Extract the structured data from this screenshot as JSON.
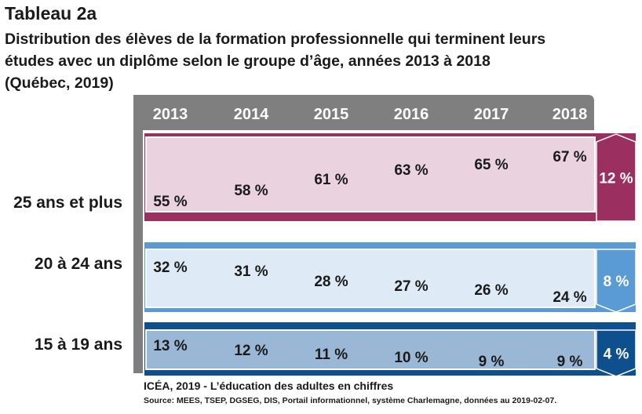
{
  "header": {
    "title": "Tableau 2a",
    "subtitle_lines": [
      "Distribution des élèves de la formation professionnelle qui terminent leurs",
      "études avec un diplôme selon le groupe d’âge, années 2013 à 2018",
      "(Québec, 2019)"
    ]
  },
  "chart_data": {
    "type": "table",
    "title": "Tableau 2a",
    "categories": [
      "2013",
      "2014",
      "2015",
      "2016",
      "2017",
      "2018"
    ],
    "series": [
      {
        "name": "25 ans et plus",
        "values": [
          55,
          58,
          61,
          63,
          65,
          67
        ],
        "labels": [
          "55 %",
          "58 %",
          "61 %",
          "63 %",
          "65 %",
          "67 %"
        ],
        "change": "12 %",
        "direction": "up",
        "color": "#9b2f60",
        "bg": "#ead3df"
      },
      {
        "name": "20 à 24 ans",
        "values": [
          32,
          31,
          28,
          27,
          26,
          24
        ],
        "labels": [
          "32 %",
          "31 %",
          "28 %",
          "27 %",
          "26 %",
          "24 %"
        ],
        "change": "8 %",
        "direction": "down",
        "color": "#5b9bd5",
        "bg": "#deeaf6"
      },
      {
        "name": "15 à 19 ans",
        "values": [
          13,
          12,
          11,
          10,
          9,
          9
        ],
        "labels": [
          "13 %",
          "12 %",
          "11 %",
          "10 %",
          "9 %",
          "9 %"
        ],
        "change": "4 %",
        "direction": "down",
        "color": "#0e4f8e",
        "bg": "#9ab8d5"
      }
    ],
    "header_color": "#7f7f7f"
  },
  "footer": {
    "source_main": "ICÉA, 2019 - L’éducation des adultes en chiffres",
    "source_detail": "Source: MEES, TSEP, DGSEG, DIS, Portail informationnel, système Charlemagne, données au 2019-02-07."
  }
}
